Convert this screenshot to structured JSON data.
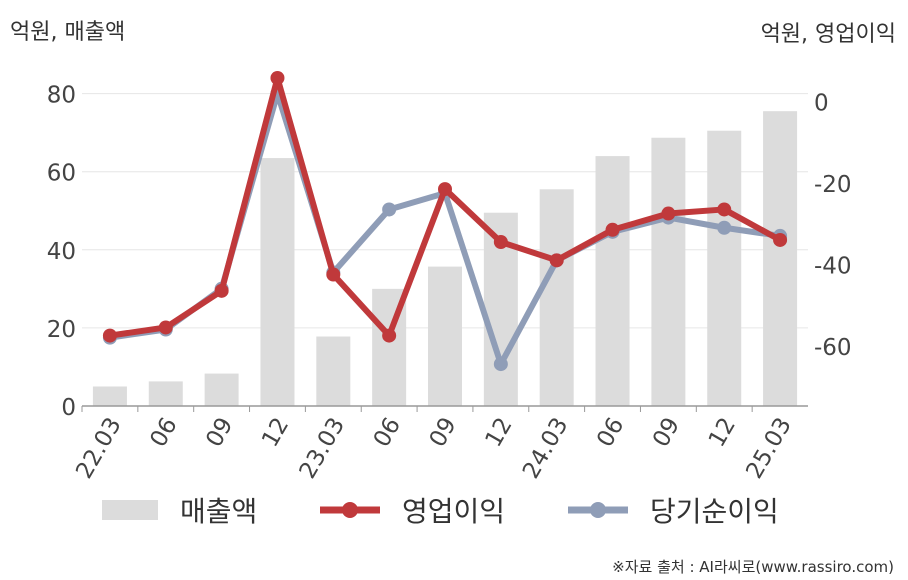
{
  "units": {
    "left": "억원, 매출액",
    "right": "억원, 영업이익"
  },
  "source": "※자료 출처 : AI라씨로(www.rassiro.com)",
  "colors": {
    "revenue": "#dcdcdc",
    "operating_profit": "#c0393b",
    "net_income": "#8f9db7",
    "grid": "#e6e6e6",
    "axis": "#999999"
  },
  "chart_data": {
    "type": "bar+line",
    "categories": [
      "22.03",
      "06",
      "09",
      "12",
      "23.03",
      "06",
      "09",
      "12",
      "24.03",
      "06",
      "09",
      "12",
      "25.03"
    ],
    "left_axis": {
      "ticks": [
        0,
        20,
        40,
        60,
        80
      ],
      "range": [
        0,
        84
      ]
    },
    "right_axis": {
      "ticks": [
        0,
        -20,
        -40,
        -60
      ],
      "range": [
        -74.8,
        5.8
      ]
    },
    "series": [
      {
        "name": "매출액",
        "type": "bar",
        "axis": "left",
        "values": [
          5,
          6.3,
          8.3,
          63.5,
          17.8,
          30,
          35.7,
          49.5,
          55.5,
          64,
          68.7,
          70.5,
          75.5
        ]
      },
      {
        "name": "영업이익",
        "type": "line",
        "axis": "right",
        "values": [
          -57.5,
          -55.5,
          -46.5,
          5.8,
          -42.5,
          -57.5,
          -21.5,
          -34.5,
          -39,
          -31.5,
          -27.5,
          -26.5,
          -34
        ]
      },
      {
        "name": "당기순이익",
        "type": "line",
        "axis": "right",
        "values": [
          -58,
          -56,
          -46,
          2,
          -42,
          -26.5,
          -22.5,
          -64.5,
          -39,
          -32,
          -28.5,
          -31,
          -33
        ]
      }
    ],
    "legend": {
      "position": "bottom"
    },
    "grid": true
  }
}
